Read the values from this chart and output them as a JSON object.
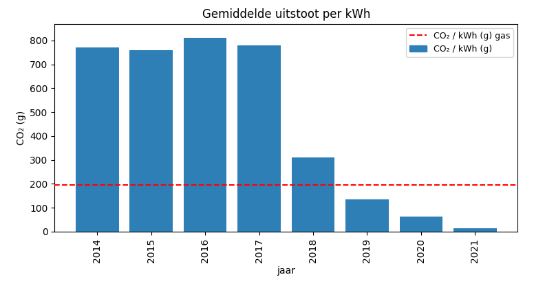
{
  "years": [
    2014,
    2015,
    2016,
    2017,
    2018,
    2019,
    2020,
    2021
  ],
  "values": [
    770,
    760,
    810,
    780,
    310,
    135,
    62,
    14
  ],
  "bar_color": "#2e7fb5",
  "dashed_line_y": 195,
  "dashed_line_color": "red",
  "title": "Gemiddelde uitstoot per kWh",
  "xlabel": "jaar",
  "ylabel": "CO₂ (g)",
  "legend_line_label": "CO₂ / kWh (g) gas",
  "legend_bar_label": "CO₂ / kWh (g)",
  "ylim": [
    0,
    870
  ],
  "yticks": [
    0,
    100,
    200,
    300,
    400,
    500,
    600,
    700,
    800
  ],
  "figsize": [
    7.92,
    4.32
  ],
  "dpi": 100
}
